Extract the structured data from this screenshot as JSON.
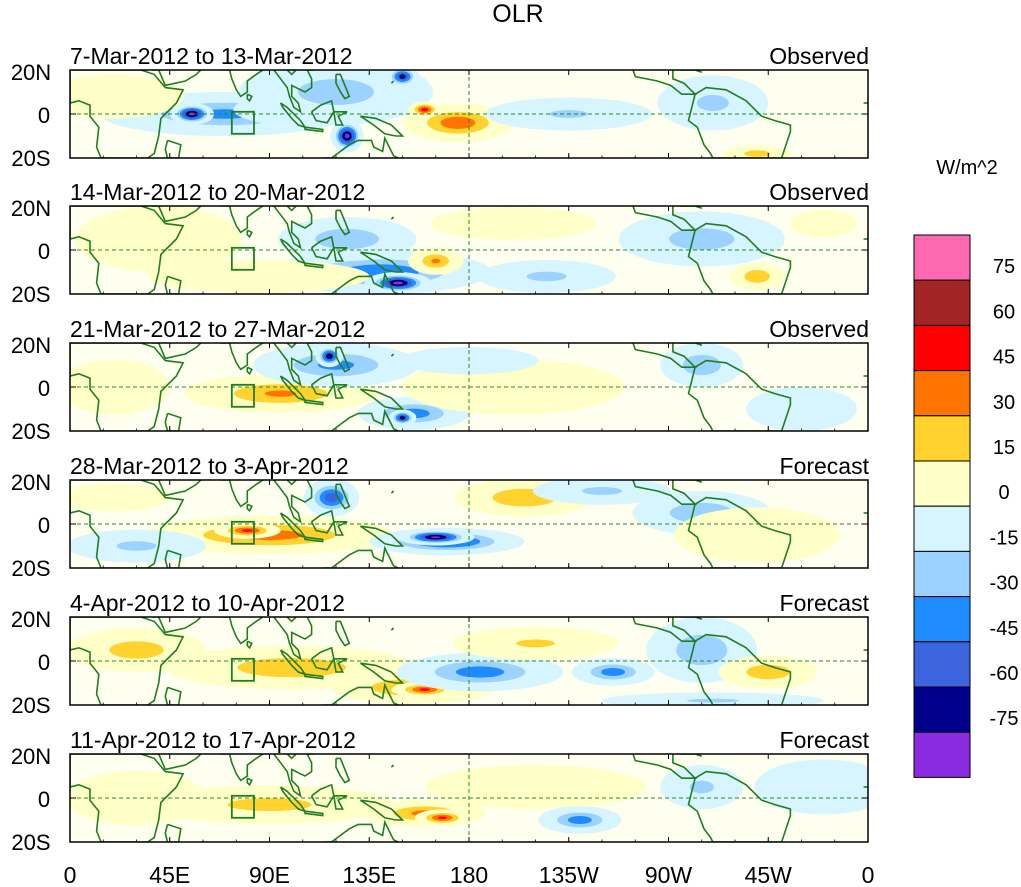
{
  "chart_data": {
    "type": "heatmap",
    "title": "OLR",
    "units_label": "W/m^2",
    "y_ticks": [
      "20N",
      "0",
      "20S"
    ],
    "x_ticks": [
      "0",
      "45E",
      "90E",
      "135E",
      "180",
      "135W",
      "90W",
      "45W",
      "0"
    ],
    "colorbar": {
      "levels": [
        "75",
        "60",
        "45",
        "30",
        "15",
        "0",
        "-15",
        "-30",
        "-45",
        "-60",
        "-75"
      ],
      "colors_top_to_bottom": [
        "#ff69b4",
        "#a32424",
        "#ff0000",
        "#ff7300",
        "#ffd22d",
        "#ffffc8",
        "#d7f5ff",
        "#9bd2ff",
        "#1e8cff",
        "#3c64dc",
        "#00008c",
        "#8a2be2"
      ]
    },
    "panels": [
      {
        "period": "7-Mar-2012 to 13-Mar-2012",
        "kind": "Observed"
      },
      {
        "period": "14-Mar-2012 to 20-Mar-2012",
        "kind": "Observed"
      },
      {
        "period": "21-Mar-2012 to 27-Mar-2012",
        "kind": "Observed"
      },
      {
        "period": "28-Mar-2012 to 3-Apr-2012",
        "kind": "Forecast"
      },
      {
        "period": "4-Apr-2012 to 10-Apr-2012",
        "kind": "Forecast"
      },
      {
        "period": "11-Apr-2012 to 17-Apr-2012",
        "kind": "Forecast"
      }
    ],
    "anomaly_features": [
      [
        {
          "lon": 70,
          "lat": 0,
          "rx": 45,
          "ry": 8,
          "v": -35
        },
        {
          "lon": 55,
          "lat": 0,
          "rx": 8,
          "ry": 4,
          "v": -80
        },
        {
          "lon": 105,
          "lat": 2,
          "rx": 25,
          "ry": 6,
          "v": -50
        },
        {
          "lon": 125,
          "lat": -10,
          "rx": 6,
          "ry": 6,
          "v": -80
        },
        {
          "lon": 120,
          "lat": 10,
          "rx": 35,
          "ry": 12,
          "v": -25
        },
        {
          "lon": 150,
          "lat": 17,
          "rx": 6,
          "ry": 4,
          "v": -65
        },
        {
          "lon": 175,
          "lat": -4,
          "rx": 20,
          "ry": 7,
          "v": 42
        },
        {
          "lon": 160,
          "lat": 2,
          "rx": 6,
          "ry": 3,
          "v": 52
        },
        {
          "lon": 225,
          "lat": 0,
          "rx": 30,
          "ry": 6,
          "v": -18
        },
        {
          "lon": 290,
          "lat": 5,
          "rx": 20,
          "ry": 10,
          "v": -20
        },
        {
          "lon": 20,
          "lat": 8,
          "rx": 25,
          "ry": 8,
          "v": 8
        },
        {
          "lon": 310,
          "lat": -18,
          "rx": 12,
          "ry": 3,
          "v": 25
        }
      ],
      [
        {
          "lon": 140,
          "lat": -10,
          "rx": 40,
          "ry": 8,
          "v": -45
        },
        {
          "lon": 148,
          "lat": -15,
          "rx": 12,
          "ry": 4,
          "v": -80
        },
        {
          "lon": 125,
          "lat": 5,
          "rx": 25,
          "ry": 8,
          "v": -30
        },
        {
          "lon": 40,
          "lat": 5,
          "rx": 30,
          "ry": 12,
          "v": 12
        },
        {
          "lon": 85,
          "lat": -12,
          "rx": 40,
          "ry": 6,
          "v": 15
        },
        {
          "lon": 165,
          "lat": -5,
          "rx": 10,
          "ry": 5,
          "v": 32
        },
        {
          "lon": 200,
          "lat": 12,
          "rx": 30,
          "ry": 6,
          "v": 15
        },
        {
          "lon": 215,
          "lat": -12,
          "rx": 25,
          "ry": 6,
          "v": -20
        },
        {
          "lon": 285,
          "lat": 5,
          "rx": 30,
          "ry": 10,
          "v": -25
        },
        {
          "lon": 310,
          "lat": -12,
          "rx": 10,
          "ry": 5,
          "v": 30
        },
        {
          "lon": 340,
          "lat": 12,
          "rx": 12,
          "ry": 5,
          "v": 15
        }
      ],
      [
        {
          "lon": 95,
          "lat": -3,
          "rx": 35,
          "ry": 7,
          "v": 32
        },
        {
          "lon": 120,
          "lat": 10,
          "rx": 30,
          "ry": 8,
          "v": -35
        },
        {
          "lon": 117,
          "lat": 14,
          "rx": 5,
          "ry": 4,
          "v": -70
        },
        {
          "lon": 155,
          "lat": -12,
          "rx": 20,
          "ry": 6,
          "v": -40
        },
        {
          "lon": 150,
          "lat": -14,
          "rx": 5,
          "ry": 3,
          "v": -65
        },
        {
          "lon": 200,
          "lat": 0,
          "rx": 40,
          "ry": 10,
          "v": 15
        },
        {
          "lon": 180,
          "lat": 12,
          "rx": 25,
          "ry": 5,
          "v": -15
        },
        {
          "lon": 285,
          "lat": 10,
          "rx": 15,
          "ry": 8,
          "v": -30
        },
        {
          "lon": 20,
          "lat": 0,
          "rx": 20,
          "ry": 10,
          "v": 8
        },
        {
          "lon": 330,
          "lat": -10,
          "rx": 20,
          "ry": 8,
          "v": -15
        }
      ],
      [
        {
          "lon": 90,
          "lat": -5,
          "rx": 45,
          "ry": 7,
          "v": 38
        },
        {
          "lon": 80,
          "lat": -3,
          "rx": 12,
          "ry": 3,
          "v": 48
        },
        {
          "lon": 170,
          "lat": -8,
          "rx": 28,
          "ry": 5,
          "v": -55
        },
        {
          "lon": 165,
          "lat": -6,
          "rx": 14,
          "ry": 3,
          "v": -78
        },
        {
          "lon": 118,
          "lat": 12,
          "rx": 10,
          "ry": 7,
          "v": -55
        },
        {
          "lon": 205,
          "lat": 12,
          "rx": 25,
          "ry": 7,
          "v": 30
        },
        {
          "lon": 240,
          "lat": 15,
          "rx": 25,
          "ry": 5,
          "v": -20
        },
        {
          "lon": 285,
          "lat": 5,
          "rx": 25,
          "ry": 8,
          "v": -30
        },
        {
          "lon": 310,
          "lat": -5,
          "rx": 30,
          "ry": 10,
          "v": 10
        },
        {
          "lon": 30,
          "lat": -10,
          "rx": 25,
          "ry": 6,
          "v": -20
        },
        {
          "lon": 20,
          "lat": 12,
          "rx": 20,
          "ry": 5,
          "v": 10
        }
      ],
      [
        {
          "lon": 100,
          "lat": -3,
          "rx": 45,
          "ry": 8,
          "v": 28
        },
        {
          "lon": 155,
          "lat": -12,
          "rx": 30,
          "ry": 6,
          "v": 35
        },
        {
          "lon": 160,
          "lat": -13,
          "rx": 12,
          "ry": 3,
          "v": 48
        },
        {
          "lon": 185,
          "lat": -5,
          "rx": 30,
          "ry": 7,
          "v": -40
        },
        {
          "lon": 30,
          "lat": 5,
          "rx": 25,
          "ry": 8,
          "v": 25
        },
        {
          "lon": 210,
          "lat": 8,
          "rx": 30,
          "ry": 6,
          "v": 18
        },
        {
          "lon": 245,
          "lat": -5,
          "rx": 15,
          "ry": 5,
          "v": -40
        },
        {
          "lon": 285,
          "lat": 5,
          "rx": 20,
          "ry": 12,
          "v": -30
        },
        {
          "lon": 315,
          "lat": -5,
          "rx": 18,
          "ry": 6,
          "v": 28
        },
        {
          "lon": 290,
          "lat": -18,
          "rx": 40,
          "ry": 3,
          "v": -18
        }
      ],
      [
        {
          "lon": 90,
          "lat": -3,
          "rx": 45,
          "ry": 7,
          "v": 22
        },
        {
          "lon": 160,
          "lat": -7,
          "rx": 22,
          "ry": 5,
          "v": 35
        },
        {
          "lon": 168,
          "lat": -9,
          "rx": 10,
          "ry": 3,
          "v": 48
        },
        {
          "lon": 210,
          "lat": 5,
          "rx": 40,
          "ry": 8,
          "v": 15
        },
        {
          "lon": 230,
          "lat": -10,
          "rx": 15,
          "ry": 5,
          "v": -40
        },
        {
          "lon": 285,
          "lat": 5,
          "rx": 15,
          "ry": 8,
          "v": -20
        },
        {
          "lon": 340,
          "lat": 5,
          "rx": 25,
          "ry": 10,
          "v": -15
        },
        {
          "lon": 30,
          "lat": 0,
          "rx": 25,
          "ry": 10,
          "v": 10
        }
      ]
    ]
  }
}
